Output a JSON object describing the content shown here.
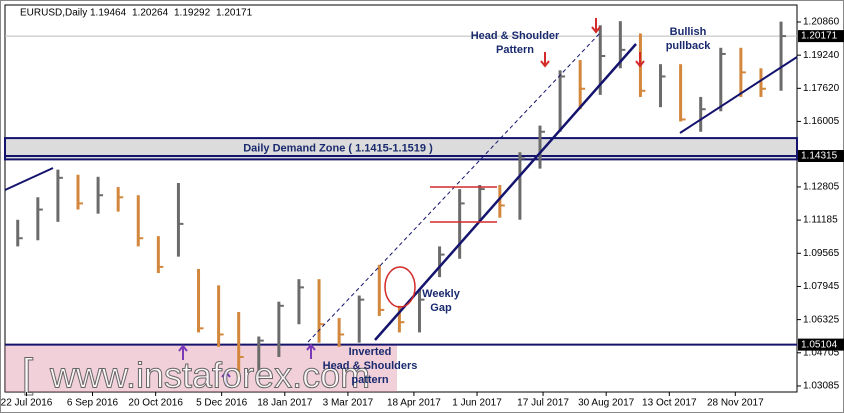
{
  "chart_data": {
    "type": "ohlc",
    "title": "EURUSD,Daily",
    "header_values": [
      1.19464,
      1.20264,
      1.19292,
      1.20171
    ],
    "x": [
      "2016-07-11",
      "2016-07-25",
      "2016-08-08",
      "2016-08-22",
      "2016-09-05",
      "2016-09-19",
      "2016-10-03",
      "2016-10-17",
      "2016-10-31",
      "2016-11-14",
      "2016-11-28",
      "2016-12-12",
      "2016-12-26",
      "2017-01-09",
      "2017-01-23",
      "2017-02-06",
      "2017-02-20",
      "2017-03-06",
      "2017-03-20",
      "2017-04-03",
      "2017-04-17",
      "2017-05-01",
      "2017-05-15",
      "2017-05-29",
      "2017-06-12",
      "2017-06-26",
      "2017-07-10",
      "2017-07-24",
      "2017-08-07",
      "2017-08-21",
      "2017-09-04",
      "2017-09-18",
      "2017-10-02",
      "2017-10-16",
      "2017-10-30",
      "2017-11-13",
      "2017-11-27",
      "2017-12-11",
      "2017-12-25"
    ],
    "high": [
      1.112,
      1.123,
      1.1365,
      1.134,
      1.133,
      1.128,
      1.124,
      1.104,
      1.13,
      1.088,
      1.08,
      1.067,
      1.055,
      1.072,
      1.083,
      1.083,
      1.064,
      1.075,
      1.09,
      1.07,
      1.078,
      1.099,
      1.127,
      1.129,
      1.129,
      1.145,
      1.158,
      1.185,
      1.19,
      1.207,
      1.209,
      1.203,
      1.188,
      1.188,
      1.172,
      1.196,
      1.196,
      1.186,
      1.2088
    ],
    "low": [
      1.099,
      1.102,
      1.111,
      1.117,
      1.115,
      1.116,
      1.099,
      1.086,
      1.094,
      1.057,
      1.05,
      1.035,
      1.034,
      1.045,
      1.061,
      1.052,
      1.05,
      1.052,
      1.065,
      1.057,
      1.057,
      1.084,
      1.093,
      1.111,
      1.113,
      1.112,
      1.137,
      1.155,
      1.166,
      1.173,
      1.186,
      1.172,
      1.167,
      1.16,
      1.155,
      1.165,
      1.172,
      1.172,
      1.175
    ],
    "close": [
      1.103,
      1.117,
      1.1325,
      1.12,
      1.124,
      1.123,
      1.103,
      1.089,
      1.11,
      1.059,
      1.056,
      1.045,
      1.053,
      1.07,
      1.079,
      1.061,
      1.056,
      1.073,
      1.068,
      1.062,
      1.073,
      1.095,
      1.12,
      1.127,
      1.119,
      1.142,
      1.155,
      1.182,
      1.176,
      1.192,
      1.195,
      1.175,
      1.182,
      1.161,
      1.166,
      1.193,
      1.184,
      1.176,
      1.20171
    ],
    "up_color": "#6b6b6b",
    "down_color": "#d2873c",
    "ylim": [
      1.0279,
      1.2169
    ],
    "yticks": [
      {
        "value": 1.2086,
        "label": "1.20860"
      },
      {
        "value": 1.1924,
        "label": "1.19240"
      },
      {
        "value": 1.1762,
        "label": "1.17620"
      },
      1.16005,
      1.12805,
      1.11185,
      1.09565,
      1.07945,
      1.06325,
      1.04705,
      1.03085
    ],
    "xlim": [
      "2016-07-07",
      "2018-01-10"
    ],
    "xticks": [
      {
        "value": "2016-07-22",
        "label": "22 Jul 2016"
      },
      {
        "value": "2016-09-06",
        "label": "6 Sep 2016"
      },
      {
        "value": "2016-10-20",
        "label": "20 Oct 2016"
      },
      {
        "value": "2016-12-05",
        "label": "5 Dec 2016"
      },
      {
        "value": "2017-01-18",
        "label": "18 Jan 2017"
      },
      {
        "value": "2017-03-03",
        "label": "3 Mar 2017"
      },
      {
        "value": "2017-04-18",
        "label": "18 Apr 2017"
      },
      {
        "value": "2017-06-01",
        "label": "1 Jun 2017"
      },
      {
        "value": "2017-07-17",
        "label": "17 Jul 2017"
      },
      {
        "value": "2017-08-30",
        "label": "30 Aug 2017"
      },
      {
        "value": "2017-10-13",
        "label": "13 Oct 2017"
      },
      {
        "value": "2017-11-28",
        "label": "28 Nov 2017"
      }
    ],
    "price_tags": [
      1.20171,
      1.14315,
      1.05104
    ],
    "demand_zone": {
      "range": [
        1.1415,
        1.1519
      ],
      "label": "Daily Demand Zone ( 1.1415-1.1519 )"
    },
    "annotations": [
      {
        "lines": [
          "Head & Shoulder",
          "Pattern"
        ]
      },
      {
        "lines": [
          "Bullish",
          "pullback"
        ]
      },
      {
        "lines": [
          "Weekly",
          "Gap"
        ]
      },
      {
        "lines": [
          "Inverted",
          "Head & Shoulders",
          "pattern"
        ]
      }
    ],
    "watermark": "www.instaforex.com"
  }
}
